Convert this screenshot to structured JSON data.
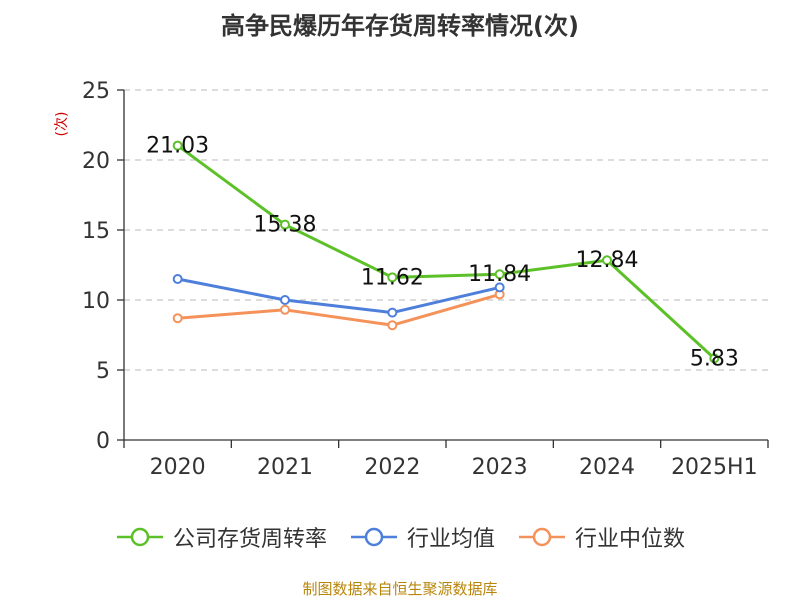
{
  "title": "高争民爆历年存货周转率情况(次)",
  "source": "制图数据来自恒生聚源数据库",
  "chart_data": {
    "type": "line",
    "title": "高争民爆历年存货周转率情况(次)",
    "unit": "(次)",
    "categories": [
      "2020",
      "2021",
      "2022",
      "2023",
      "2024",
      "2025H1"
    ],
    "ylim": [
      0,
      25
    ],
    "yticks": [
      0,
      5,
      10,
      15,
      20,
      25
    ],
    "grid": true,
    "legend_position": "bottom",
    "series": [
      {
        "name": "公司存货周转率",
        "color": "#5cc128",
        "values": [
          21.03,
          15.38,
          11.62,
          11.84,
          12.84,
          5.83
        ],
        "labels": [
          "21.03",
          "15.38",
          "11.62",
          "11.84",
          "12.84",
          "5.83"
        ]
      },
      {
        "name": "行业均值",
        "color": "#4e7fdb",
        "values": [
          11.5,
          10.0,
          9.1,
          10.9,
          null,
          null
        ]
      },
      {
        "name": "行业中位数",
        "color": "#f4925a",
        "values": [
          8.7,
          9.3,
          8.2,
          10.4,
          null,
          null
        ]
      }
    ]
  }
}
